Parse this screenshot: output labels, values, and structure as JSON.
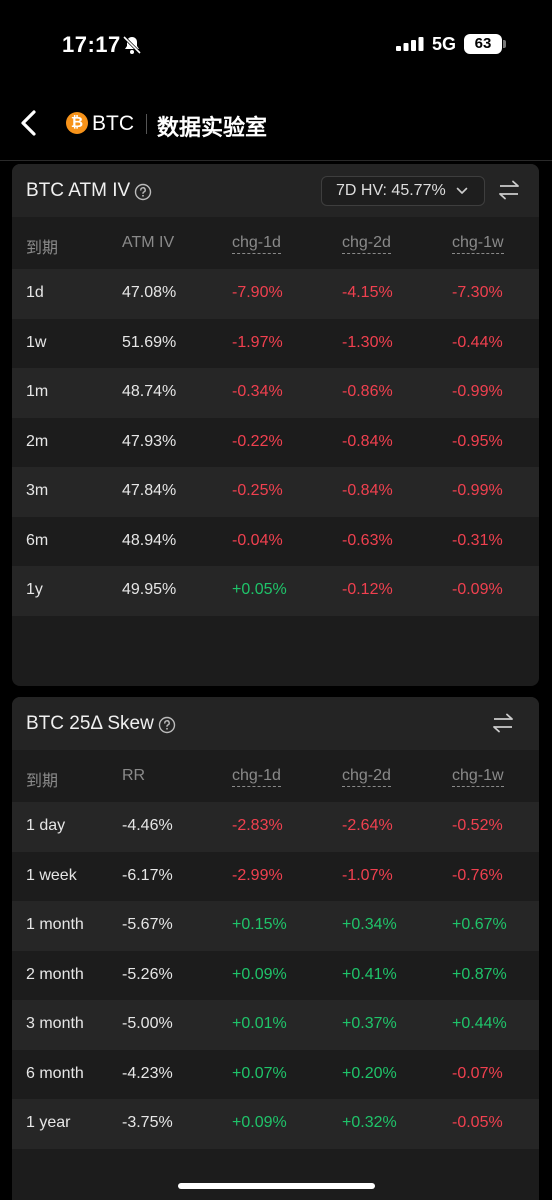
{
  "status": {
    "time": "17:17",
    "network": "5G",
    "battery": "63"
  },
  "nav": {
    "coin": "BTC",
    "title": "数据实验室"
  },
  "atm_iv": {
    "title": "BTC ATM IV",
    "hv_label": "7D HV: 45.77%",
    "headers": [
      "到期",
      "ATM IV",
      "chg-1d",
      "chg-2d",
      "chg-1w"
    ],
    "rows": [
      {
        "tenor": "1d",
        "value": "47.08%",
        "chg1d": "-7.90%",
        "chg2d": "-4.15%",
        "chg1w": "-7.30%"
      },
      {
        "tenor": "1w",
        "value": "51.69%",
        "chg1d": "-1.97%",
        "chg2d": "-1.30%",
        "chg1w": "-0.44%"
      },
      {
        "tenor": "1m",
        "value": "48.74%",
        "chg1d": "-0.34%",
        "chg2d": "-0.86%",
        "chg1w": "-0.99%"
      },
      {
        "tenor": "2m",
        "value": "47.93%",
        "chg1d": "-0.22%",
        "chg2d": "-0.84%",
        "chg1w": "-0.95%"
      },
      {
        "tenor": "3m",
        "value": "47.84%",
        "chg1d": "-0.25%",
        "chg2d": "-0.84%",
        "chg1w": "-0.99%"
      },
      {
        "tenor": "6m",
        "value": "48.94%",
        "chg1d": "-0.04%",
        "chg2d": "-0.63%",
        "chg1w": "-0.31%"
      },
      {
        "tenor": "1y",
        "value": "49.95%",
        "chg1d": "+0.05%",
        "chg2d": "-0.12%",
        "chg1w": "-0.09%"
      }
    ]
  },
  "skew": {
    "title": "BTC 25Δ Skew",
    "headers": [
      "到期",
      "RR",
      "chg-1d",
      "chg-2d",
      "chg-1w"
    ],
    "rows": [
      {
        "tenor": "1 day",
        "value": "-4.46%",
        "chg1d": "-2.83%",
        "chg2d": "-2.64%",
        "chg1w": "-0.52%"
      },
      {
        "tenor": "1 week",
        "value": "-6.17%",
        "chg1d": "-2.99%",
        "chg2d": "-1.07%",
        "chg1w": "-0.76%"
      },
      {
        "tenor": "1 month",
        "value": "-5.67%",
        "chg1d": "+0.15%",
        "chg2d": "+0.34%",
        "chg1w": "+0.67%"
      },
      {
        "tenor": "2 month",
        "value": "-5.26%",
        "chg1d": "+0.09%",
        "chg2d": "+0.41%",
        "chg1w": "+0.87%"
      },
      {
        "tenor": "3 month",
        "value": "-5.00%",
        "chg1d": "+0.01%",
        "chg2d": "+0.37%",
        "chg1w": "+0.44%"
      },
      {
        "tenor": "6 month",
        "value": "-4.23%",
        "chg1d": "+0.07%",
        "chg2d": "+0.20%",
        "chg1w": "-0.07%"
      },
      {
        "tenor": "1 year",
        "value": "-3.75%",
        "chg1d": "+0.09%",
        "chg2d": "+0.32%",
        "chg1w": "-0.05%"
      }
    ]
  },
  "colors": {
    "negative": "#f0404f",
    "positive": "#1fc46a",
    "brand": "#f7931a"
  },
  "icons": [
    "bell-muted-icon",
    "signal-icon",
    "back-icon",
    "btc-logo-icon",
    "help-icon",
    "chevron-down-icon",
    "swap-icon"
  ]
}
